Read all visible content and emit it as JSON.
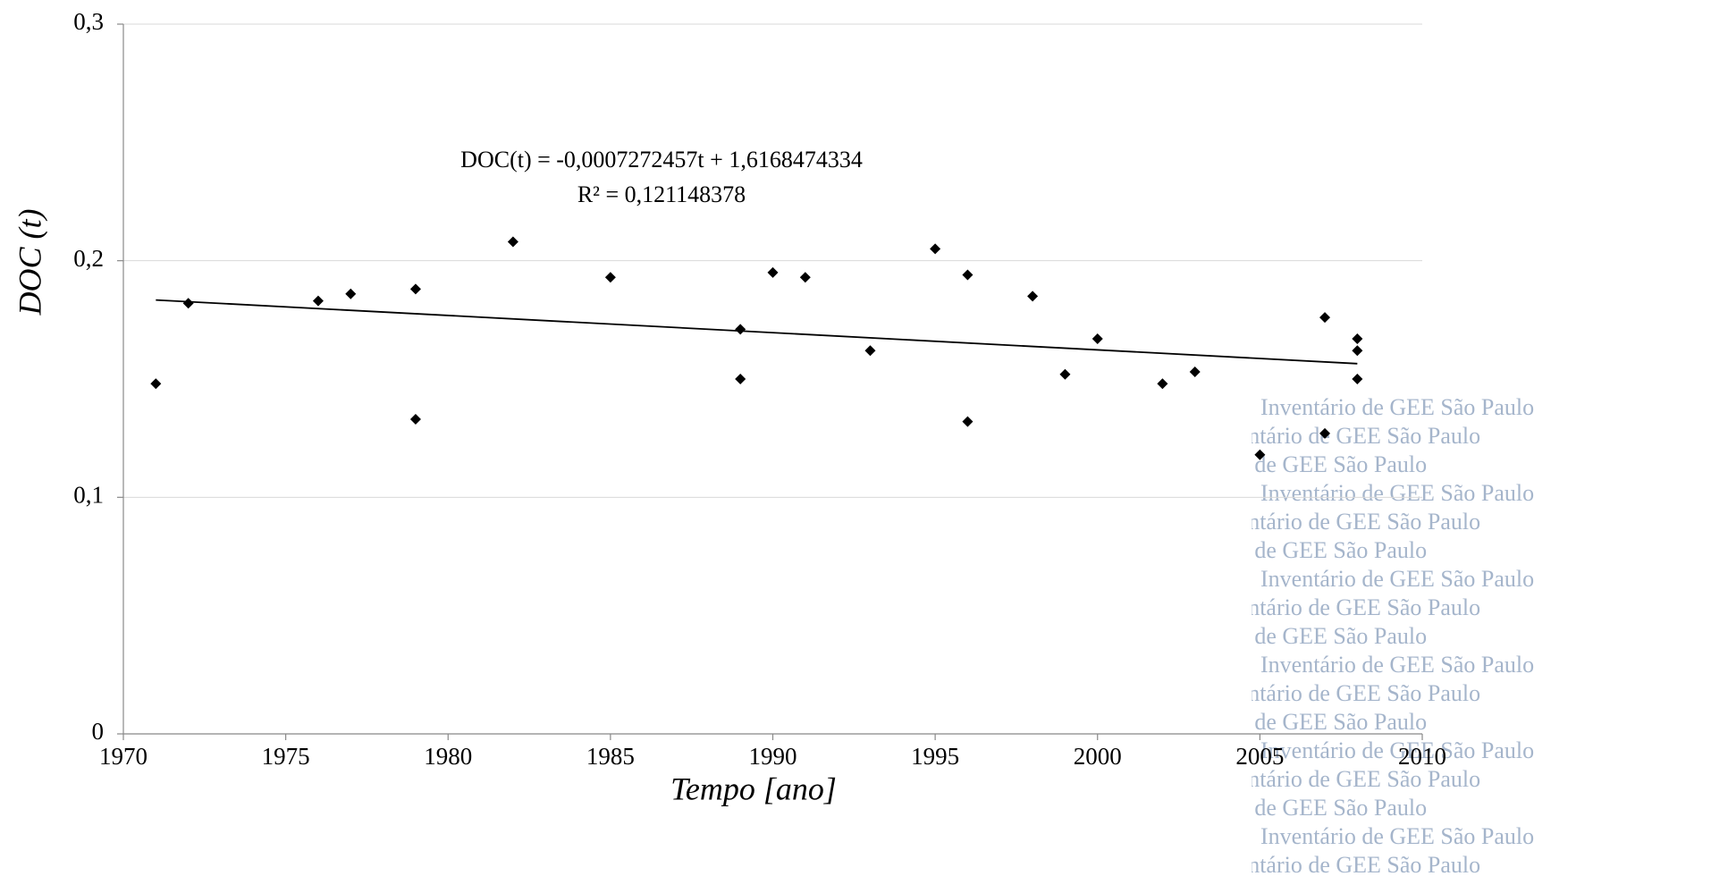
{
  "chart_data": {
    "type": "scatter",
    "xlabel": "Tempo [ano]",
    "ylabel": "DOC (t)",
    "equation": "DOC(t) = -0,0007272457t + 1,6168474334",
    "r_squared": "R² = 0,121148378",
    "watermark": "Inventário de GEE São Paulo",
    "color": "#000000",
    "grid": true,
    "xlim": [
      1970,
      2010
    ],
    "xticks": [
      1970,
      1975,
      1980,
      1985,
      1990,
      1995,
      2000,
      2005,
      2010
    ],
    "ylim": [
      0,
      0.3
    ],
    "yticks": [
      0,
      {
        "value": 0.1,
        "label": "0,1"
      },
      {
        "value": 0.2,
        "label": "0,2"
      },
      {
        "value": 0.3,
        "label": "0,3"
      }
    ],
    "x": [
      1971,
      1972,
      1976,
      1977,
      1979,
      1979,
      1982,
      1985,
      1989,
      1989,
      1990,
      1991,
      1993,
      1995,
      1996,
      1996,
      1998,
      1999,
      2000,
      2002,
      2003,
      2005,
      2007,
      2007,
      2008,
      2008,
      2008
    ],
    "values": [
      0.148,
      0.182,
      0.183,
      0.186,
      0.188,
      0.133,
      0.208,
      0.193,
      0.171,
      0.15,
      0.195,
      0.193,
      0.162,
      0.205,
      0.194,
      0.132,
      0.185,
      0.152,
      0.167,
      0.148,
      0.153,
      0.118,
      0.176,
      0.127,
      0.167,
      0.162,
      0.15
    ],
    "trendline": {
      "x": [
        1971,
        2008
      ],
      "values": [
        0.1834,
        0.1565
      ]
    }
  }
}
